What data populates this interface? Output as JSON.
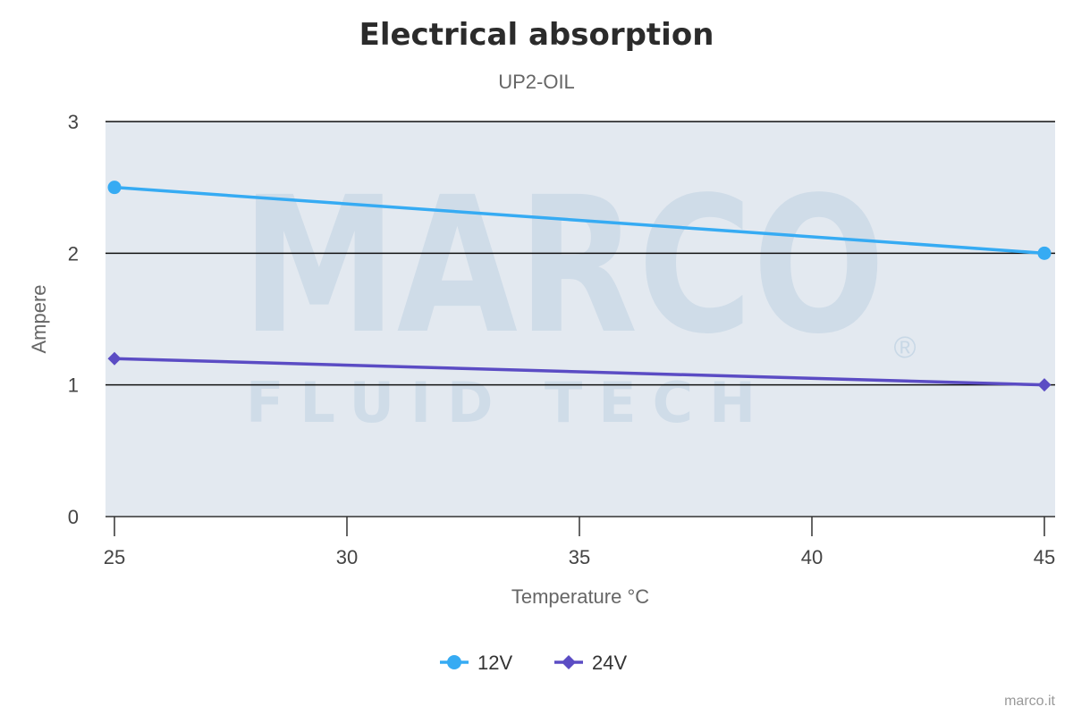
{
  "colors": {
    "plot_background": "#e3e9f0",
    "gridline": "#111111",
    "series_12v": "#36abf3",
    "series_24v": "#5b4cc4"
  },
  "watermark": {
    "brand": "MARCO",
    "tagline": "FLUID TECH",
    "registered": "®"
  },
  "credit": "marco.it",
  "chart_data": {
    "type": "line",
    "title": "Electrical absorption",
    "subtitle": "UP2-OIL",
    "xlabel": "Temperature °C",
    "ylabel": "Ampere",
    "xlim": [
      25,
      45
    ],
    "ylim": [
      0,
      3
    ],
    "x_ticks": [
      25,
      30,
      35,
      40,
      45
    ],
    "y_ticks": [
      0,
      1,
      2,
      3
    ],
    "grid": true,
    "legend_position": "bottom-center",
    "series": [
      {
        "name": "12V",
        "marker": "circle",
        "points": [
          [
            25,
            2.5
          ],
          [
            45,
            2.0
          ]
        ]
      },
      {
        "name": "24V",
        "marker": "diamond",
        "points": [
          [
            25,
            1.2
          ],
          [
            45,
            1.0
          ]
        ]
      }
    ]
  }
}
